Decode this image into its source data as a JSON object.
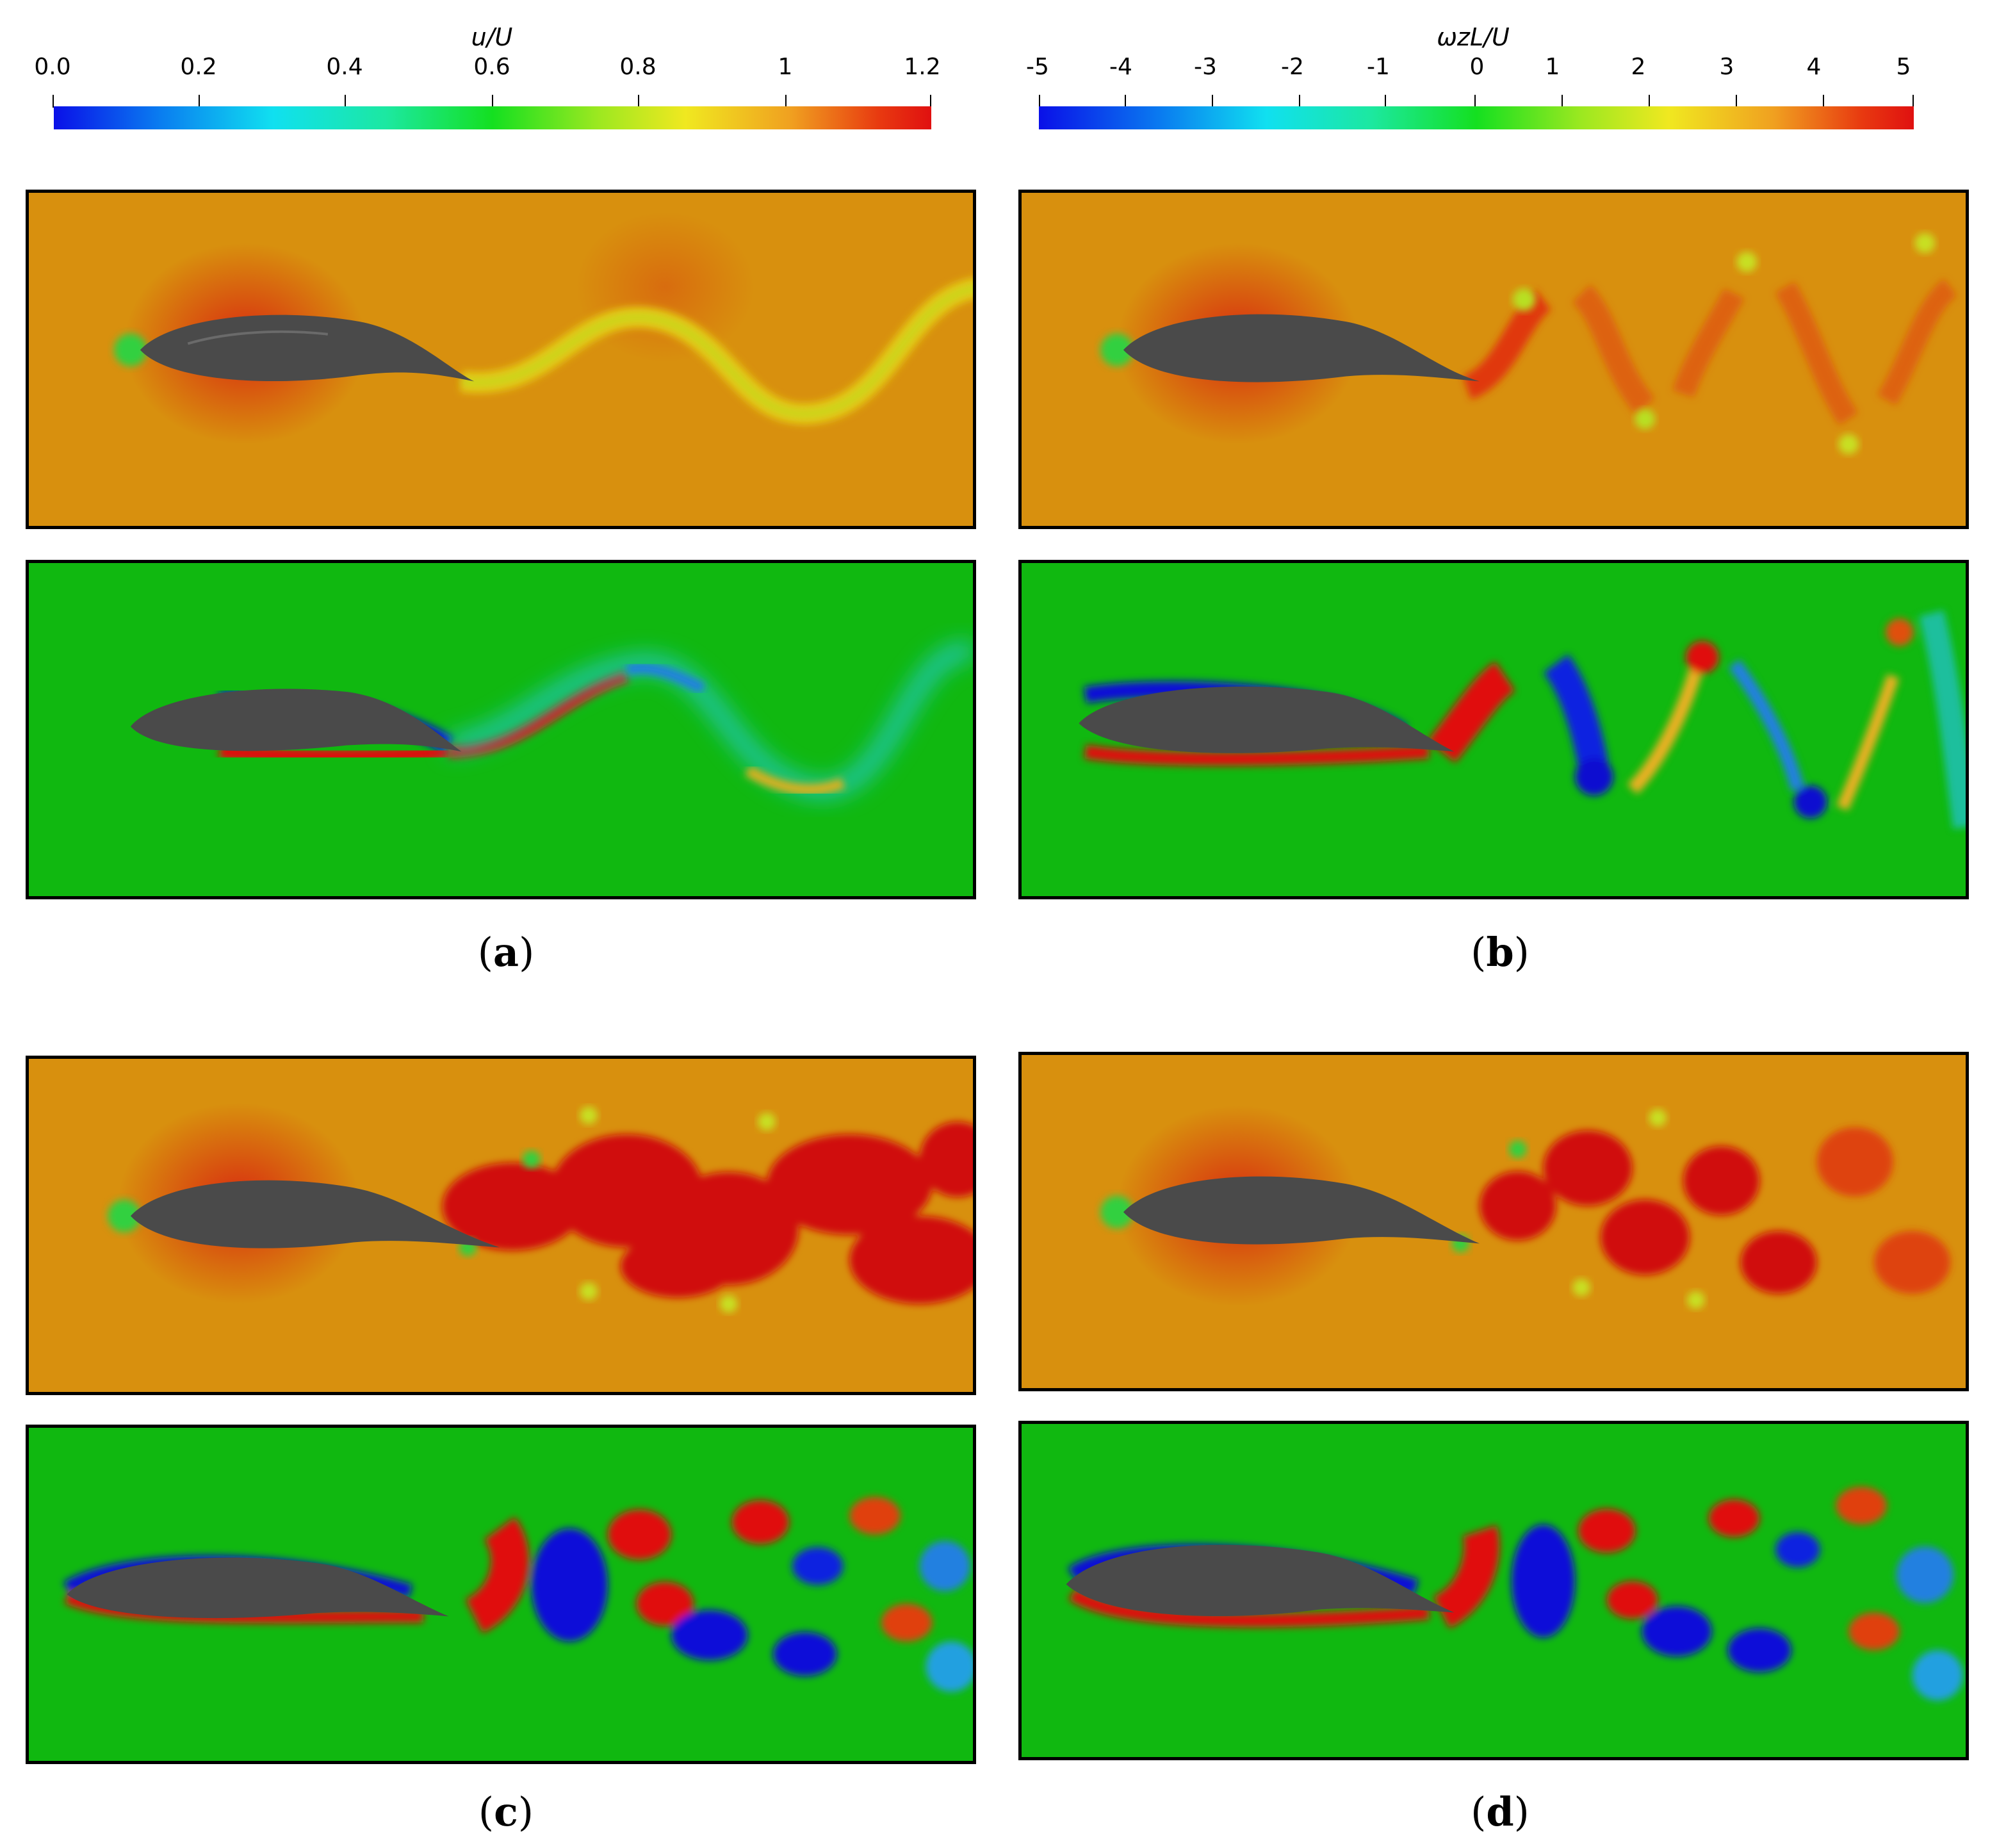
{
  "colorbars": {
    "velocity": {
      "title": "u/U",
      "ticks": [
        "0.0",
        "0.2",
        "0.4",
        "0.6",
        "0.8",
        "1",
        "1.2"
      ]
    },
    "vorticity": {
      "title": "ωzL/U",
      "ticks": [
        "-5",
        "-4",
        "-3",
        "-2",
        "-1",
        "0",
        "1",
        "2",
        "3",
        "4",
        "5"
      ]
    }
  },
  "panels": [
    {
      "label_letter": "a"
    },
    {
      "label_letter": "b"
    },
    {
      "label_letter": "c"
    },
    {
      "label_letter": "d"
    }
  ],
  "colors": {
    "velocity_background": "#d8900e",
    "velocity_high": "#d82010",
    "velocity_low": "#e6d41a",
    "vorticity_background": "#10b810",
    "vorticity_positive": "#e01010",
    "vorticity_negative": "#1010d8",
    "body": "#4a4a4a"
  }
}
